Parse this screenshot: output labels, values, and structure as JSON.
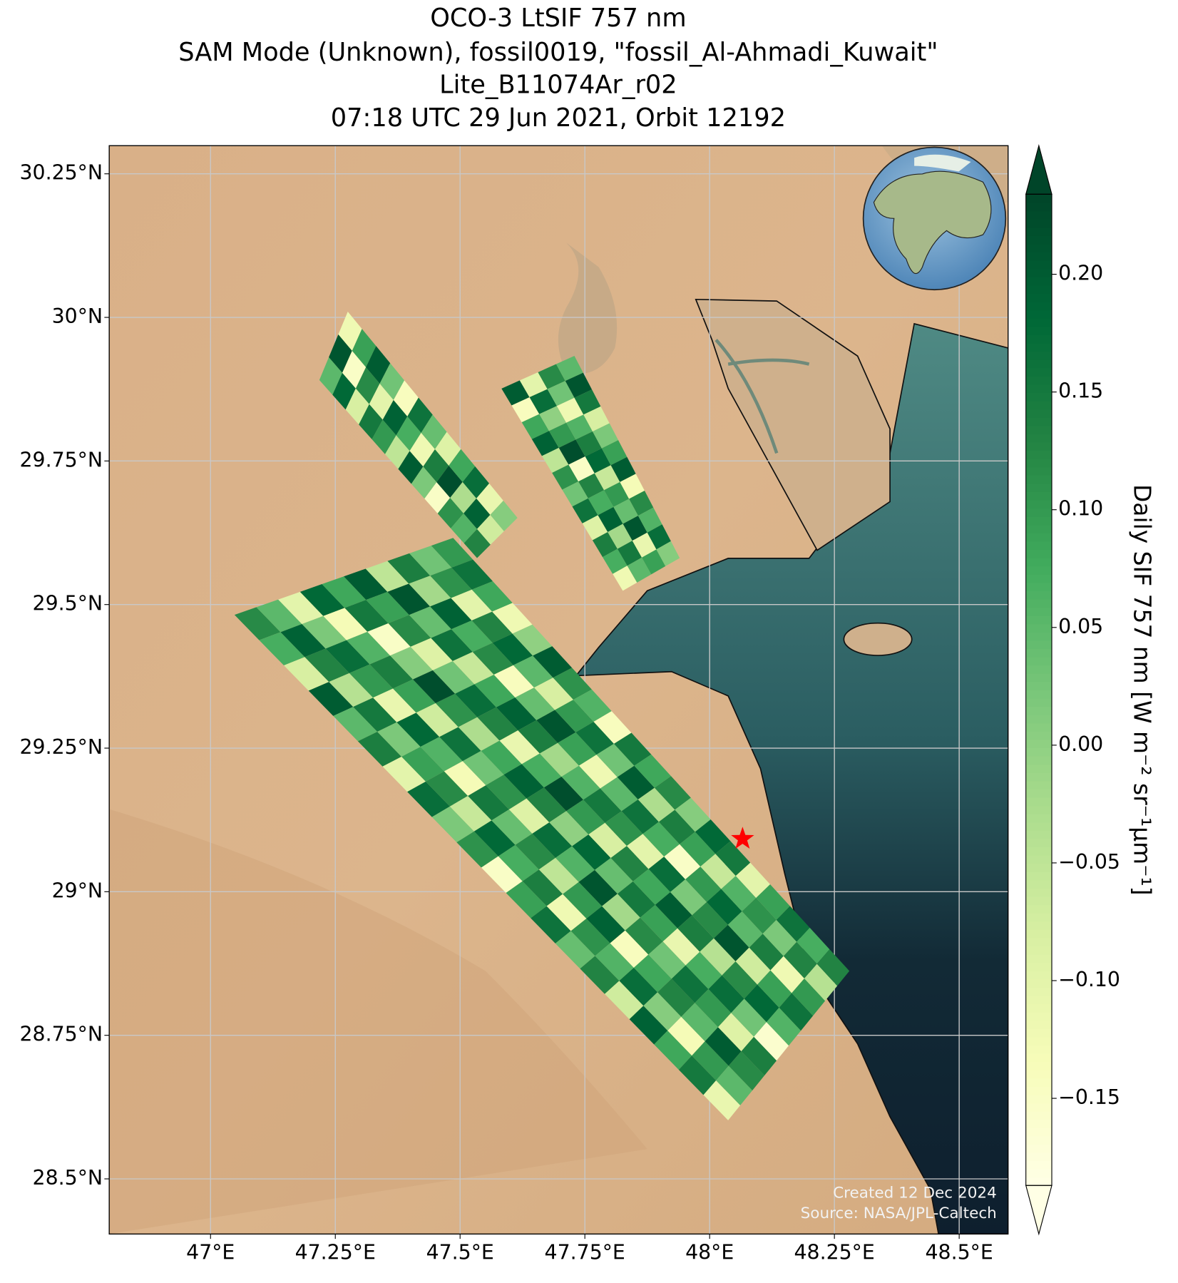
{
  "chart_data": {
    "type": "map",
    "title": [
      "OCO-3 LtSIF 757 nm",
      "SAM Mode (Unknown), fossil0019, \"fossil_Al-Ahmadi_Kuwait\"",
      "Lite_B11074Ar_r02",
      "07:18 UTC 29 Jun 2021, Orbit 12192"
    ],
    "xlim": [
      46.797,
      48.598
    ],
    "ylim": [
      28.404,
      30.299
    ],
    "xticks": [
      {
        "value": 47,
        "label": "47°E"
      },
      {
        "value": 47.25,
        "label": "47.25°E"
      },
      {
        "value": 47.5,
        "label": "47.5°E"
      },
      {
        "value": 47.75,
        "label": "47.75°E"
      },
      {
        "value": 48,
        "label": "48°E"
      },
      {
        "value": 48.25,
        "label": "48.25°E"
      },
      {
        "value": 48.5,
        "label": "48.5°E"
      }
    ],
    "yticks": [
      {
        "value": 28.5,
        "label": "28.5°N"
      },
      {
        "value": 28.75,
        "label": "28.75°N"
      },
      {
        "value": 29,
        "label": "29°N"
      },
      {
        "value": 29.25,
        "label": "29.25°N"
      },
      {
        "value": 29.5,
        "label": "29.5°N"
      },
      {
        "value": 29.75,
        "label": "29.75°N"
      },
      {
        "value": 30,
        "label": "30°N"
      },
      {
        "value": 30.25,
        "label": "30.25°N"
      }
    ],
    "grid": true,
    "colorbar": {
      "label": "Daily SIF 757 nm [W m⁻² sr⁻¹µm⁻¹]",
      "clim": [
        -0.187,
        0.234
      ],
      "colormap": [
        "#ffffe5",
        "#f7fcb9",
        "#d9f0a3",
        "#addd8e",
        "#78c679",
        "#41ab5d",
        "#238443",
        "#006837",
        "#004529"
      ],
      "ticks": [
        {
          "value": -0.15,
          "label": "−0.15"
        },
        {
          "value": -0.1,
          "label": "−0.10"
        },
        {
          "value": -0.05,
          "label": "−0.05"
        },
        {
          "value": 0,
          "label": "0.00"
        },
        {
          "value": 0.05,
          "label": "0.05"
        },
        {
          "value": 0.1,
          "label": "0.10"
        },
        {
          "value": 0.15,
          "label": "0.15"
        },
        {
          "value": 0.2,
          "label": "0.20"
        }
      ]
    },
    "target": [
      48.066,
      29.092
    ],
    "swaths": [
      {
        "corners": [
          [
            47.218,
            29.891
          ],
          [
            47.275,
            30.01
          ],
          [
            47.615,
            29.651
          ],
          [
            47.534,
            29.581
          ]
        ],
        "values": [
          [
            0.05,
            0.21,
            -0.12
          ],
          [
            0.18,
            -0.15,
            0.09
          ],
          [
            -0.08,
            0.12,
            0.2
          ],
          [
            0.15,
            -0.1,
            0.03
          ],
          [
            0.1,
            0.19,
            -0.14
          ],
          [
            -0.05,
            0.07,
            0.16
          ],
          [
            0.2,
            -0.12,
            0.04
          ],
          [
            0.02,
            0.14,
            -0.09
          ],
          [
            -0.15,
            0.22,
            0.08
          ],
          [
            0.11,
            -0.03,
            0.17
          ],
          [
            0.06,
            0.19,
            -0.11
          ],
          [
            0.13,
            -0.07,
            0.01
          ]
        ]
      },
      {
        "corners": [
          [
            47.583,
            29.876
          ],
          [
            47.729,
            29.933
          ],
          [
            47.94,
            29.581
          ],
          [
            47.826,
            29.524
          ]
        ],
        "values": [
          [
            0.2,
            -0.1,
            0.12,
            0.05
          ],
          [
            -0.14,
            0.17,
            0.03,
            0.21
          ],
          [
            0.08,
            0.0,
            -0.12,
            0.15
          ],
          [
            0.19,
            0.1,
            0.06,
            -0.08
          ],
          [
            -0.05,
            0.22,
            0.14,
            0.02
          ],
          [
            0.11,
            -0.15,
            0.18,
            0.09
          ],
          [
            0.03,
            0.13,
            -0.06,
            0.2
          ],
          [
            0.16,
            0.07,
            0.1,
            -0.13
          ],
          [
            -0.09,
            0.19,
            0.04,
            0.12
          ],
          [
            0.14,
            -0.02,
            0.21,
            0.06
          ],
          [
            0.07,
            0.15,
            -0.11,
            0.17
          ],
          [
            -0.12,
            0.05,
            0.09,
            0.01
          ]
        ]
      },
      {
        "corners": [
          [
            47.048,
            29.482
          ],
          [
            47.486,
            29.616
          ],
          [
            48.28,
            28.862
          ],
          [
            48.037,
            28.602
          ]
        ],
        "values": [
          [
            0.12,
            0.05,
            -0.1,
            0.18,
            0.08,
            0.2,
            -0.05,
            0.14,
            0.03,
            0.1
          ],
          [
            0.07,
            0.19,
            0.02,
            -0.13,
            0.15,
            0.09,
            0.21,
            -0.02,
            0.11,
            0.16
          ],
          [
            -0.08,
            0.13,
            0.17,
            0.06,
            -0.15,
            0.12,
            0.04,
            0.19,
            -0.1,
            0.08
          ],
          [
            0.2,
            -0.04,
            0.1,
            0.14,
            0.01,
            -0.09,
            0.16,
            0.07,
            0.13,
            -0.12
          ],
          [
            0.05,
            0.15,
            -0.11,
            0.09,
            0.22,
            0.03,
            -0.06,
            0.12,
            0.18,
            0.0
          ],
          [
            0.14,
            0.02,
            0.18,
            -0.07,
            0.11,
            0.17,
            0.08,
            -0.14,
            0.05,
            0.2
          ],
          [
            -0.1,
            0.09,
            0.06,
            0.16,
            -0.03,
            0.13,
            0.19,
            0.04,
            -0.08,
            0.11
          ],
          [
            0.17,
            0.12,
            -0.13,
            0.03,
            0.08,
            -0.11,
            0.14,
            0.21,
            0.1,
            0.06
          ],
          [
            0.02,
            -0.06,
            0.15,
            0.11,
            0.19,
            0.07,
            -0.02,
            0.09,
            0.16,
            -0.14
          ],
          [
            0.11,
            0.18,
            0.04,
            -0.09,
            0.13,
            0.22,
            0.06,
            -0.12,
            0.03,
            0.15
          ],
          [
            -0.15,
            0.07,
            0.12,
            0.17,
            0.0,
            0.1,
            0.15,
            0.05,
            0.2,
            0.08
          ],
          [
            0.09,
            0.14,
            -0.05,
            0.06,
            0.18,
            -0.08,
            0.11,
            0.16,
            -0.03,
            0.12
          ],
          [
            0.16,
            -0.12,
            0.1,
            0.21,
            0.04,
            0.13,
            -0.1,
            0.07,
            0.14,
            0.01
          ],
          [
            0.04,
            0.11,
            0.19,
            -0.02,
            0.15,
            0.08,
            0.17,
            -0.15,
            0.09,
            0.18
          ],
          [
            0.13,
            0.06,
            -0.14,
            0.12,
            0.09,
            0.2,
            0.02,
            0.1,
            -0.06,
            0.15
          ],
          [
            -0.07,
            0.17,
            0.08,
            0.03,
            -0.11,
            0.14,
            0.12,
            0.18,
            0.06,
            -0.1
          ],
          [
            0.19,
            0.01,
            0.13,
            0.16,
            0.07,
            -0.04,
            0.21,
            0.05,
            0.11,
            0.09
          ],
          [
            0.08,
            -0.13,
            0.05,
            0.1,
            0.17,
            0.12,
            -0.07,
            0.14,
            0.02,
            0.16
          ],
          [
            0.15,
            0.1,
            0.2,
            -0.09,
            0.03,
            0.18,
            0.09,
            -0.12,
            0.13,
            0.07
          ],
          [
            -0.11,
            0.05,
            0.12,
            0.14,
            -0.16,
            0.06,
            0.16,
            0.1,
            -0.04,
            0.13
          ]
        ]
      }
    ],
    "annotation": [
      "Created 12 Dec 2024",
      "Source: NASA/JPL-Caltech"
    ]
  }
}
